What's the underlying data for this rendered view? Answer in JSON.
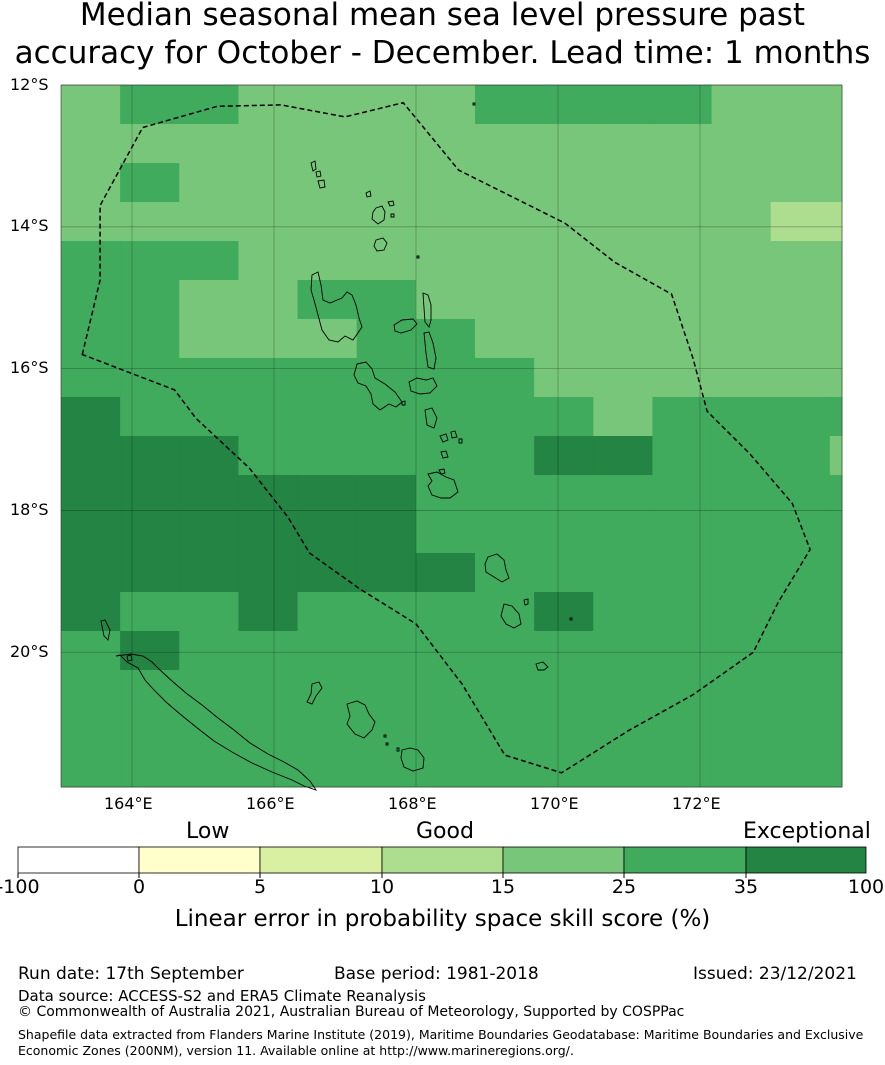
{
  "title": {
    "line1": "Median seasonal mean sea level pressure past",
    "line2": "accuracy for October - December. Lead time: 1 months"
  },
  "map": {
    "lat_ticks": [
      "12°S",
      "14°S",
      "16°S",
      "18°S",
      "20°S"
    ],
    "lon_ticks": [
      "164°E",
      "166°E",
      "168°E",
      "170°E",
      "172°E"
    ],
    "extent": {
      "lon_min": 163,
      "lon_max": 174,
      "lat_min": -21.9,
      "lat_max": -12
    },
    "cell_size_deg": 0.833,
    "skill_grid_classes": [
      [
        4,
        5,
        5,
        4,
        4,
        4,
        4,
        5,
        5,
        5,
        5,
        4,
        4,
        4
      ],
      [
        4,
        4,
        4,
        4,
        4,
        4,
        4,
        4,
        4,
        4,
        4,
        4,
        4,
        4
      ],
      [
        4,
        5,
        4,
        4,
        4,
        4,
        4,
        4,
        4,
        4,
        4,
        4,
        4,
        4
      ],
      [
        4,
        4,
        4,
        4,
        4,
        4,
        4,
        4,
        4,
        4,
        4,
        4,
        3,
        3
      ],
      [
        5,
        5,
        5,
        4,
        4,
        4,
        4,
        4,
        4,
        4,
        4,
        4,
        4,
        4
      ],
      [
        5,
        5,
        4,
        4,
        5,
        5,
        4,
        4,
        4,
        4,
        4,
        4,
        4,
        4
      ],
      [
        5,
        5,
        4,
        4,
        4,
        5,
        5,
        4,
        4,
        4,
        4,
        4,
        4,
        4
      ],
      [
        5,
        5,
        5,
        5,
        5,
        5,
        5,
        5,
        4,
        4,
        4,
        4,
        4,
        4
      ],
      [
        6,
        5,
        5,
        5,
        5,
        5,
        5,
        5,
        5,
        4,
        5,
        5,
        5,
        5
      ],
      [
        6,
        6,
        6,
        5,
        5,
        5,
        5,
        5,
        6,
        6,
        5,
        5,
        5,
        4
      ],
      [
        6,
        6,
        6,
        6,
        6,
        6,
        5,
        5,
        5,
        5,
        5,
        5,
        5,
        5
      ],
      [
        6,
        6,
        6,
        6,
        6,
        6,
        5,
        5,
        5,
        5,
        5,
        5,
        5,
        5
      ],
      [
        6,
        6,
        6,
        6,
        6,
        6,
        6,
        5,
        5,
        5,
        5,
        5,
        5,
        5
      ],
      [
        6,
        5,
        5,
        6,
        5,
        5,
        5,
        5,
        6,
        5,
        5,
        5,
        5,
        5
      ],
      [
        5,
        6,
        5,
        5,
        5,
        5,
        5,
        5,
        5,
        5,
        5,
        5,
        5,
        5
      ],
      [
        5,
        5,
        5,
        5,
        5,
        5,
        5,
        5,
        5,
        5,
        5,
        5,
        5,
        5
      ],
      [
        5,
        5,
        5,
        5,
        5,
        5,
        5,
        5,
        5,
        5,
        5,
        5,
        5,
        5
      ],
      [
        5,
        5,
        5,
        5,
        5,
        5,
        5,
        5,
        5,
        5,
        5,
        5,
        5,
        5
      ]
    ],
    "eez_boundary_lonlat": [
      [
        163.3,
        -15.8
      ],
      [
        163.55,
        -14.75
      ],
      [
        163.55,
        -13.7
      ],
      [
        164.15,
        -12.6
      ],
      [
        165.2,
        -12.3
      ],
      [
        166.1,
        -12.28
      ],
      [
        167,
        -12.45
      ],
      [
        167.82,
        -12.25
      ],
      [
        168.6,
        -13.2
      ],
      [
        169.6,
        -13.7
      ],
      [
        170.1,
        -13.95
      ],
      [
        170.8,
        -14.5
      ],
      [
        171.6,
        -14.95
      ],
      [
        171.9,
        -15.85
      ],
      [
        172.1,
        -16.6
      ],
      [
        172.7,
        -17.2
      ],
      [
        173.3,
        -17.9
      ],
      [
        173.55,
        -18.55
      ],
      [
        173.1,
        -19.3
      ],
      [
        172.75,
        -20
      ],
      [
        171.9,
        -20.6
      ],
      [
        171,
        -21.1
      ],
      [
        170.05,
        -21.7
      ],
      [
        169.25,
        -21.45
      ],
      [
        168.65,
        -20.45
      ],
      [
        168,
        -19.6
      ],
      [
        167.2,
        -19.1
      ],
      [
        166.5,
        -18.6
      ],
      [
        166.2,
        -18.1
      ],
      [
        165.65,
        -17.4
      ],
      [
        164.9,
        -16.7
      ],
      [
        164.6,
        -16.3
      ],
      [
        163.3,
        -15.8
      ]
    ],
    "colormap": [
      "#ffffff",
      "#ffffcc",
      "#d9f0a3",
      "#addd8e",
      "#78c679",
      "#41ab5d",
      "#238443"
    ]
  },
  "colorbar": {
    "categories": [
      "Low",
      "Good",
      "Exceptional"
    ],
    "ticks": [
      "-100",
      "0",
      "5",
      "10",
      "15",
      "25",
      "35",
      "100"
    ],
    "label": "Linear error in probability space skill score (%)"
  },
  "footer": {
    "run_date": "Run date: 17th September",
    "base_period": "Base period: 1981-2018",
    "issued": "Issued: 23/12/2021",
    "data_source": "Data source: ACCESS-S2 and ERA5 Climate Reanalysis",
    "copyright": "© Commonwealth of Australia 2021, Australian Bureau of Meteorology, Supported by COSPPac",
    "shapefile_line1": "Shapefile data extracted from Flanders Marine Institute (2019), Maritime Boundaries Geodatabase: Maritime Boundaries and Exclusive",
    "shapefile_line2": "Economic Zones (200NM), version 11. Available online at http://www.marineregions.org/."
  }
}
